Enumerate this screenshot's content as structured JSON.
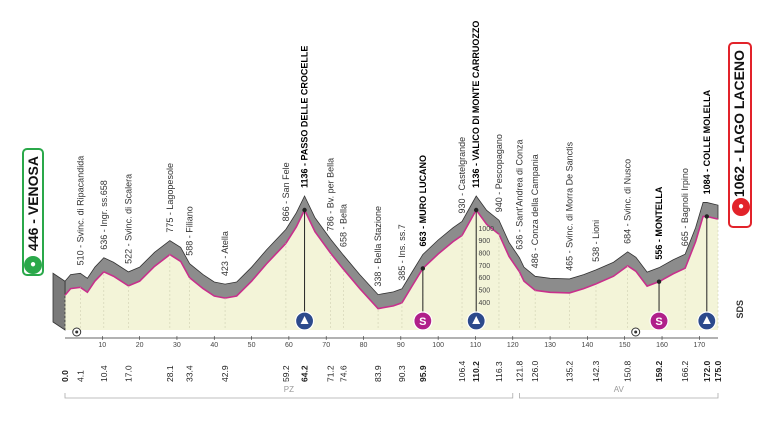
{
  "start": {
    "altitude": "446",
    "name": "VENOSA",
    "icon": "cyclist-icon"
  },
  "finish": {
    "altitude": "1062",
    "name": "LAGO LACENO",
    "icon": "cyclist-icon"
  },
  "brand": "SDS",
  "chart_data": {
    "type": "area",
    "x_unit": "km",
    "y_unit": "m",
    "xlim": [
      0,
      175
    ],
    "ylim": [
      0,
      1400
    ],
    "profile": [
      [
        0,
        446
      ],
      [
        1.5,
        500
      ],
      [
        4.1,
        510
      ],
      [
        6,
        470
      ],
      [
        8,
        560
      ],
      [
        10.4,
        636
      ],
      [
        13,
        600
      ],
      [
        17.0,
        522
      ],
      [
        20,
        560
      ],
      [
        24,
        680
      ],
      [
        28.1,
        775
      ],
      [
        31,
        720
      ],
      [
        33.4,
        588
      ],
      [
        37,
        500
      ],
      [
        40,
        440
      ],
      [
        42.9,
        423
      ],
      [
        46,
        440
      ],
      [
        50,
        560
      ],
      [
        54,
        700
      ],
      [
        59.2,
        866
      ],
      [
        62,
        1000
      ],
      [
        64.2,
        1136
      ],
      [
        67,
        960
      ],
      [
        71.2,
        786
      ],
      [
        74.6,
        658
      ],
      [
        79,
        500
      ],
      [
        83.9,
        338
      ],
      [
        88,
        360
      ],
      [
        90.3,
        385
      ],
      [
        93,
        520
      ],
      [
        95.9,
        663
      ],
      [
        100,
        780
      ],
      [
        104,
        880
      ],
      [
        106.4,
        930
      ],
      [
        110.2,
        1136
      ],
      [
        113,
        1020
      ],
      [
        116.3,
        940
      ],
      [
        119,
        760
      ],
      [
        121.8,
        636
      ],
      [
        123,
        560
      ],
      [
        126.0,
        486
      ],
      [
        130,
        470
      ],
      [
        135.2,
        465
      ],
      [
        139,
        500
      ],
      [
        142.3,
        538
      ],
      [
        147,
        600
      ],
      [
        150.8,
        684
      ],
      [
        153,
        640
      ],
      [
        156,
        520
      ],
      [
        159.2,
        556
      ],
      [
        163,
        620
      ],
      [
        166.2,
        665
      ],
      [
        169,
        880
      ],
      [
        171,
        1084
      ],
      [
        172.0,
        1084
      ],
      [
        175,
        1062
      ]
    ],
    "x_ticks": [
      10,
      20,
      30,
      40,
      50,
      60,
      70,
      80,
      90,
      100,
      110,
      120,
      130,
      140,
      150,
      160,
      170
    ],
    "y_ticks": [
      400,
      500,
      600,
      700,
      800,
      900,
      1000
    ],
    "points": [
      {
        "km": "0.0",
        "alt": "",
        "name": "",
        "bold": true
      },
      {
        "km": "4.1",
        "alt": "510",
        "name": "Svinc. di Ripacandida",
        "bold": false
      },
      {
        "km": "10.4",
        "alt": "636",
        "name": "Ingr. ss.658",
        "bold": false
      },
      {
        "km": "17.0",
        "alt": "522",
        "name": "Svinc. di Scalera",
        "bold": false
      },
      {
        "km": "28.1",
        "alt": "775",
        "name": "Lagopesole",
        "bold": false
      },
      {
        "km": "33.4",
        "alt": "588",
        "name": "Filiano",
        "bold": false
      },
      {
        "km": "42.9",
        "alt": "423",
        "name": "Atella",
        "bold": false
      },
      {
        "km": "59.2",
        "alt": "866",
        "name": "San Fele",
        "bold": false
      },
      {
        "km": "64.2",
        "alt": "1136",
        "name": "PASSO DELLE CROCELLE",
        "bold": true
      },
      {
        "km": "71.2",
        "alt": "786",
        "name": "Bv. per Bella",
        "bold": false
      },
      {
        "km": "74.6",
        "alt": "658",
        "name": "Bella",
        "bold": false
      },
      {
        "km": "83.9",
        "alt": "338",
        "name": "Bella Stazione",
        "bold": false
      },
      {
        "km": "90.3",
        "alt": "385",
        "name": "Ins. ss.7",
        "bold": false
      },
      {
        "km": "95.9",
        "alt": "663",
        "name": "MURO LUCANO",
        "bold": true
      },
      {
        "km": "106.4",
        "alt": "930",
        "name": "Castelgrande",
        "bold": false
      },
      {
        "km": "110.2",
        "alt": "1136",
        "name": "VALICO DI MONTE CARRUOZZO",
        "bold": true
      },
      {
        "km": "116.3",
        "alt": "940",
        "name": "Pescopagano",
        "bold": false
      },
      {
        "km": "121.8",
        "alt": "636",
        "name": "Sant'Andrea di Conza",
        "bold": false
      },
      {
        "km": "126.0",
        "alt": "486",
        "name": "Conza della Campania",
        "bold": false
      },
      {
        "km": "135.2",
        "alt": "465",
        "name": "Svinc. di Morra De Sanctis",
        "bold": false
      },
      {
        "km": "142.3",
        "alt": "538",
        "name": "Lioni",
        "bold": false
      },
      {
        "km": "150.8",
        "alt": "684",
        "name": "Svinc. di Nusco",
        "bold": false
      },
      {
        "km": "159.2",
        "alt": "556",
        "name": "MONTELLA",
        "bold": true
      },
      {
        "km": "166.2",
        "alt": "665",
        "name": "Bagnoli Irpino",
        "bold": false
      },
      {
        "km": "172.0",
        "alt": "1084",
        "name": "COLLE MOLELLA",
        "bold": true
      },
      {
        "km": "175.0",
        "alt": "",
        "name": "",
        "bold": true
      }
    ],
    "markers": [
      {
        "km": 64.2,
        "type": "gpm",
        "icon": "mountain-classification-icon",
        "label": ""
      },
      {
        "km": 95.9,
        "type": "sprint",
        "icon": "sprint-icon",
        "label": "S"
      },
      {
        "km": 110.2,
        "type": "gpm",
        "icon": "mountain-classification-icon",
        "label": ""
      },
      {
        "km": 159.2,
        "type": "sprint",
        "icon": "sprint-icon",
        "label": "S"
      },
      {
        "km": 172.0,
        "type": "gpm",
        "icon": "mountain-classification-icon",
        "label": ""
      }
    ],
    "regions": [
      {
        "label": "PZ",
        "from": 0,
        "to": 120
      },
      {
        "label": "AV",
        "from": 121.8,
        "to": 175
      }
    ]
  }
}
